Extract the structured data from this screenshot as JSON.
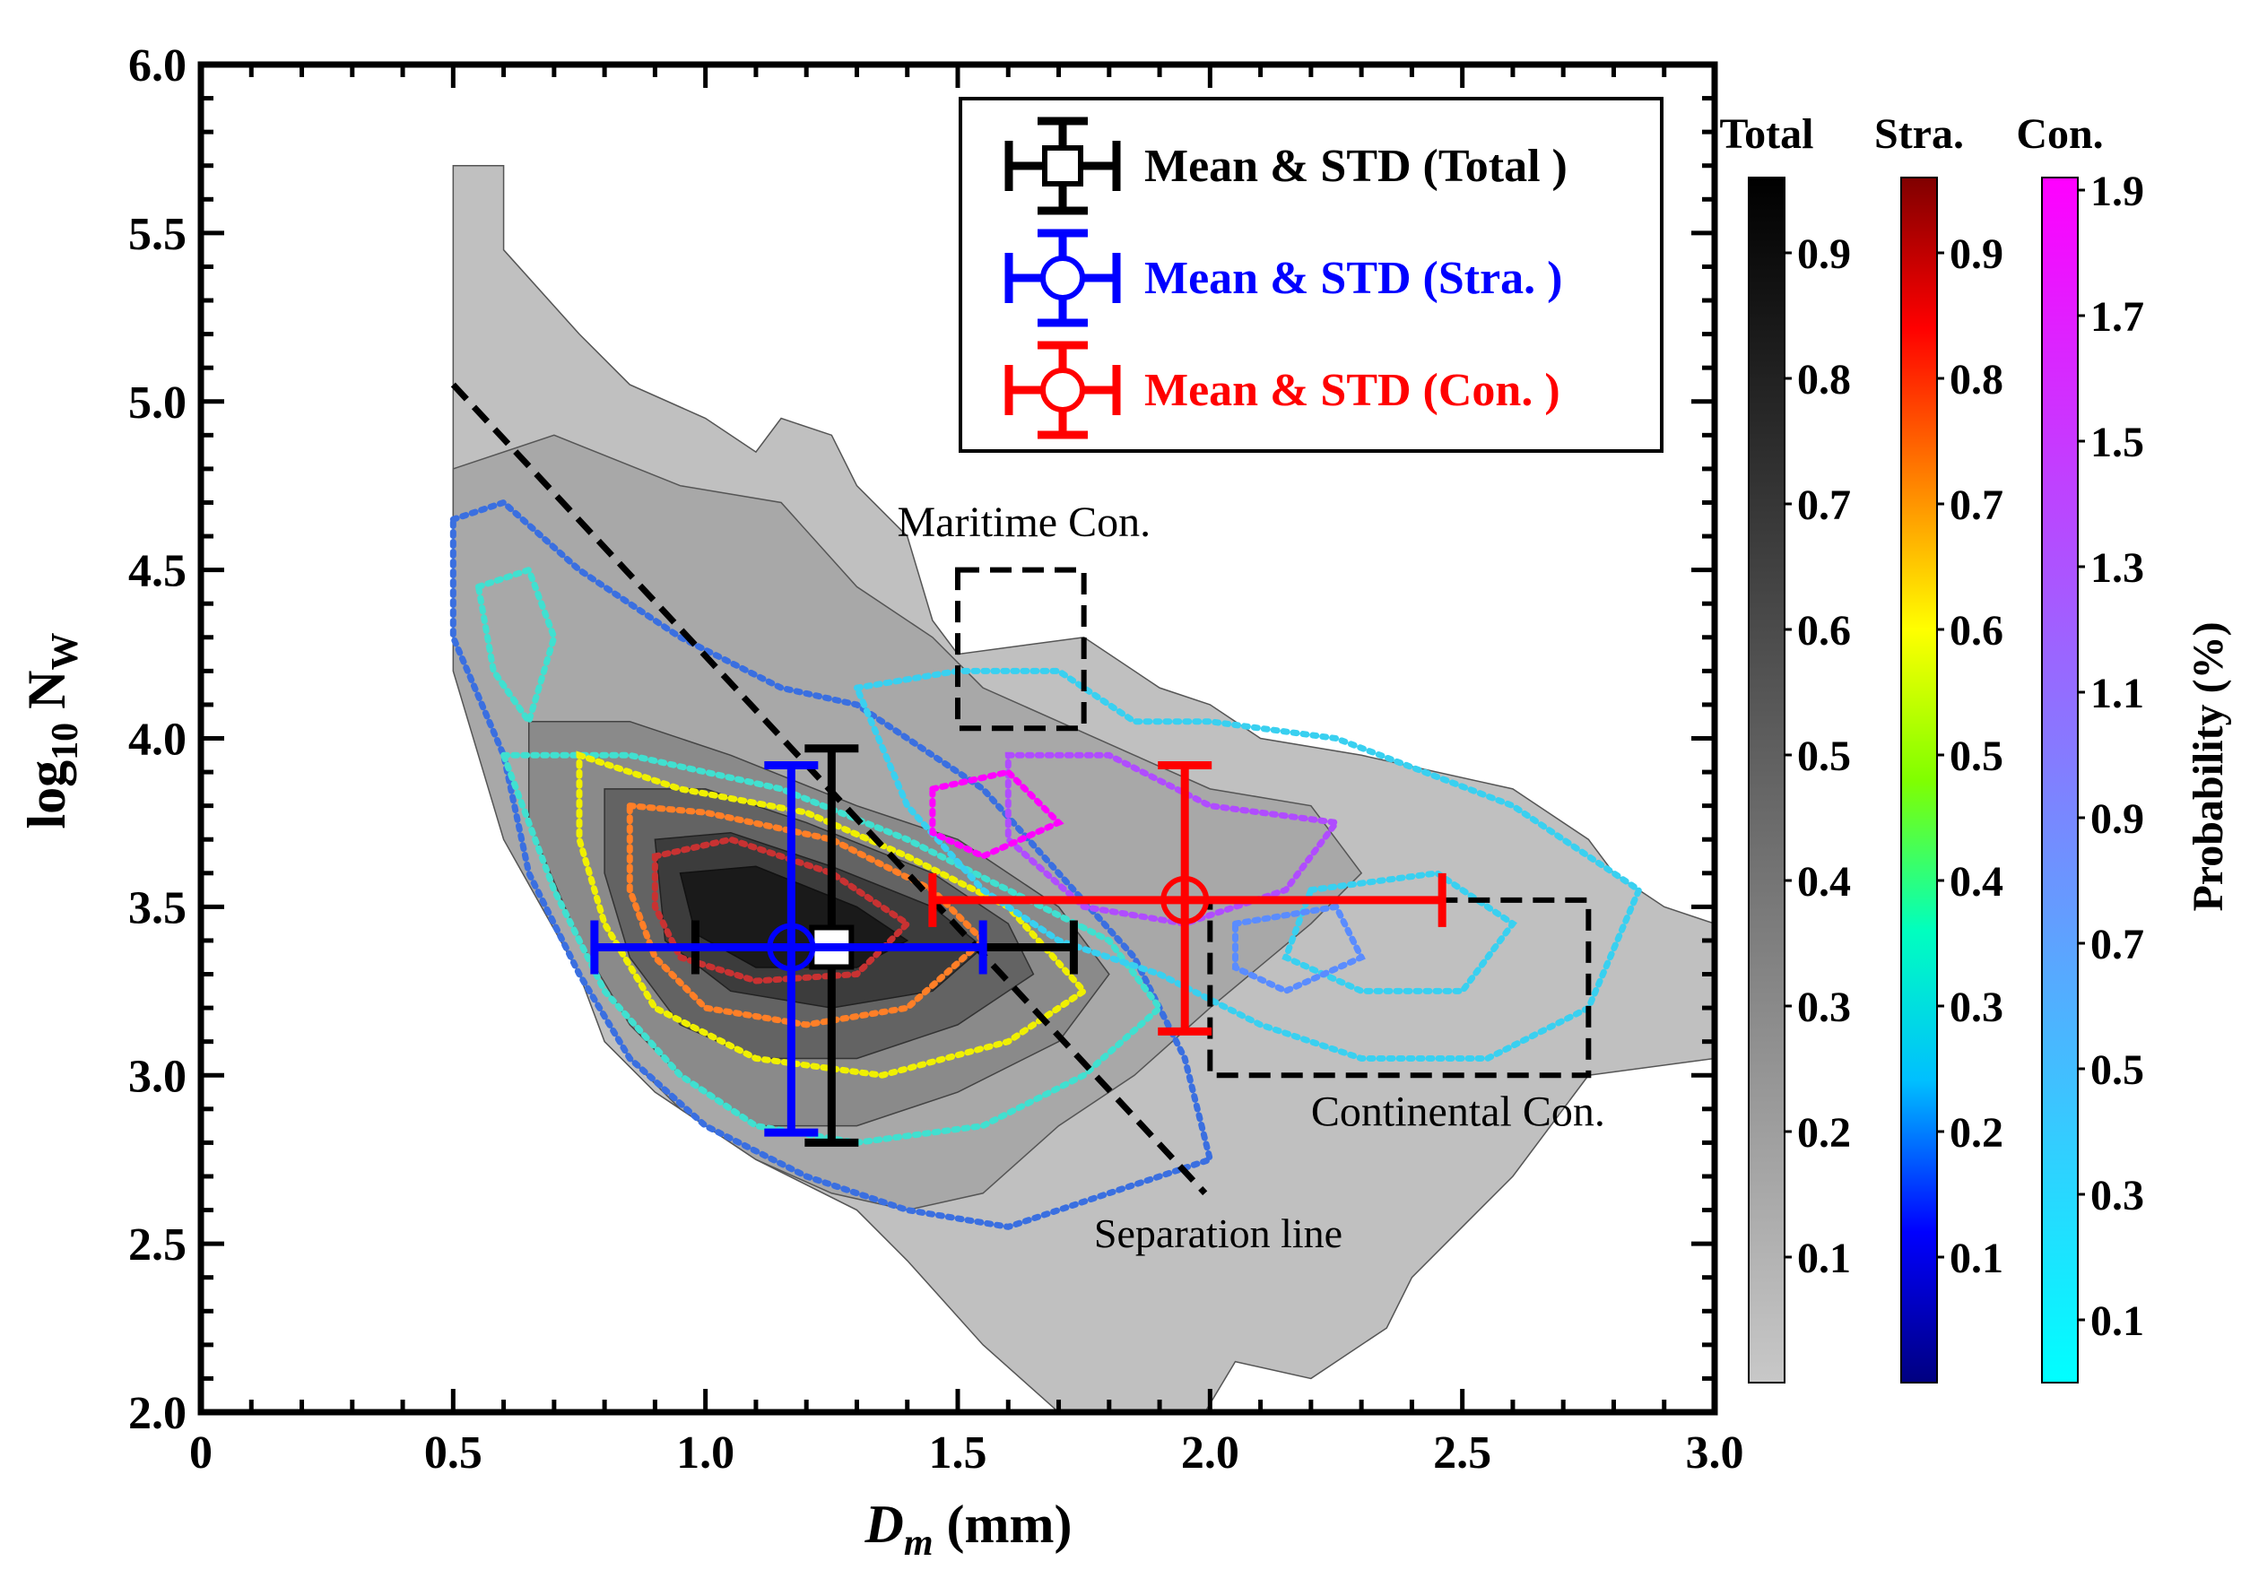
{
  "chart_data": {
    "type": "scatter",
    "xlabel_main": "D",
    "xlabel_sub": "m",
    "xlabel_unit": " (mm)",
    "ylabel_main": "log",
    "ylabel_sub1": "10",
    "ylabel_mid": " N",
    "ylabel_sub2": "W",
    "xlim": [
      0,
      3.0
    ],
    "ylim": [
      2.0,
      6.0
    ],
    "xticks": [
      {
        "v": 0,
        "label": "0"
      },
      {
        "v": 0.5,
        "label": "0.5"
      },
      {
        "v": 1.0,
        "label": "1.0"
      },
      {
        "v": 1.5,
        "label": "1.5"
      },
      {
        "v": 2.0,
        "label": "2.0"
      },
      {
        "v": 2.5,
        "label": "2.5"
      },
      {
        "v": 3.0,
        "label": "3.0"
      }
    ],
    "yticks": [
      {
        "v": 2.0,
        "label": "2.0"
      },
      {
        "v": 2.5,
        "label": "2.5"
      },
      {
        "v": 3.0,
        "label": "3.0"
      },
      {
        "v": 3.5,
        "label": "3.5"
      },
      {
        "v": 4.0,
        "label": "4.0"
      },
      {
        "v": 4.5,
        "label": "4.5"
      },
      {
        "v": 5.0,
        "label": "5.0"
      },
      {
        "v": 5.5,
        "label": "5.5"
      },
      {
        "v": 6.0,
        "label": "6.0"
      }
    ],
    "series": [
      {
        "name": "Mean & STD (Total )",
        "color": "#000000",
        "marker": "square",
        "mean": {
          "x": 1.25,
          "y": 3.38
        },
        "xerr": [
          0.98,
          1.73
        ],
        "yerr": [
          2.8,
          3.97
        ]
      },
      {
        "name": "Mean & STD (Stra. )",
        "color": "#0000ff",
        "marker": "circle",
        "mean": {
          "x": 1.17,
          "y": 3.38
        },
        "xerr": [
          0.78,
          1.55
        ],
        "yerr": [
          2.83,
          3.92
        ]
      },
      {
        "name": "Mean & STD (Con. )",
        "color": "#ff0000",
        "marker": "circle",
        "mean": {
          "x": 1.95,
          "y": 3.52
        },
        "xerr": [
          1.45,
          2.46
        ],
        "yerr": [
          3.13,
          3.92
        ]
      }
    ],
    "separation_line": {
      "x1": 0.5,
      "y1": 5.05,
      "x2": 1.99,
      "y2": 2.65,
      "label": "Separation line",
      "label_at": {
        "x": 1.77,
        "y": 2.49
      }
    },
    "regions": [
      {
        "name": "Maritime Con.",
        "x0": 1.5,
        "x1": 1.75,
        "y0": 4.03,
        "y1": 4.5,
        "label_at": {
          "x": 1.38,
          "y": 4.6
        }
      },
      {
        "name": "Continental Con.",
        "x0": 2.0,
        "x1": 2.75,
        "y0": 3.0,
        "y1": 3.52,
        "label_at": {
          "x": 2.2,
          "y": 2.85
        }
      }
    ],
    "colorbars": [
      {
        "title": "Total",
        "ticks": [
          "0.1",
          "0.2",
          "0.3",
          "0.4",
          "0.5",
          "0.6",
          "0.7",
          "0.8",
          "0.9"
        ],
        "min": 0,
        "max": 0.96,
        "colors": [
          "#c8c8c8",
          "#a0a0a0",
          "#787878",
          "#505050",
          "#282828",
          "#000000"
        ]
      },
      {
        "title": "Stra.",
        "ticks": [
          "0.1",
          "0.2",
          "0.3",
          "0.4",
          "0.5",
          "0.6",
          "0.7",
          "0.8",
          "0.9"
        ],
        "min": 0,
        "max": 0.96,
        "colors": [
          "#000080",
          "#0000ff",
          "#00bfff",
          "#00ffbf",
          "#80ff00",
          "#ffff00",
          "#ff8000",
          "#ff0000",
          "#800000"
        ]
      },
      {
        "title": "Con.",
        "ticks": [
          "0.1",
          "0.3",
          "0.5",
          "0.7",
          "0.9",
          "1.1",
          "1.3",
          "1.5",
          "1.7",
          "1.9"
        ],
        "min": 0,
        "max": 1.92,
        "colors": [
          "#00ffff",
          "#40c0ff",
          "#8080ff",
          "#c040ff",
          "#ff00ff"
        ]
      }
    ],
    "colorbar_label": "Probability (%)"
  }
}
